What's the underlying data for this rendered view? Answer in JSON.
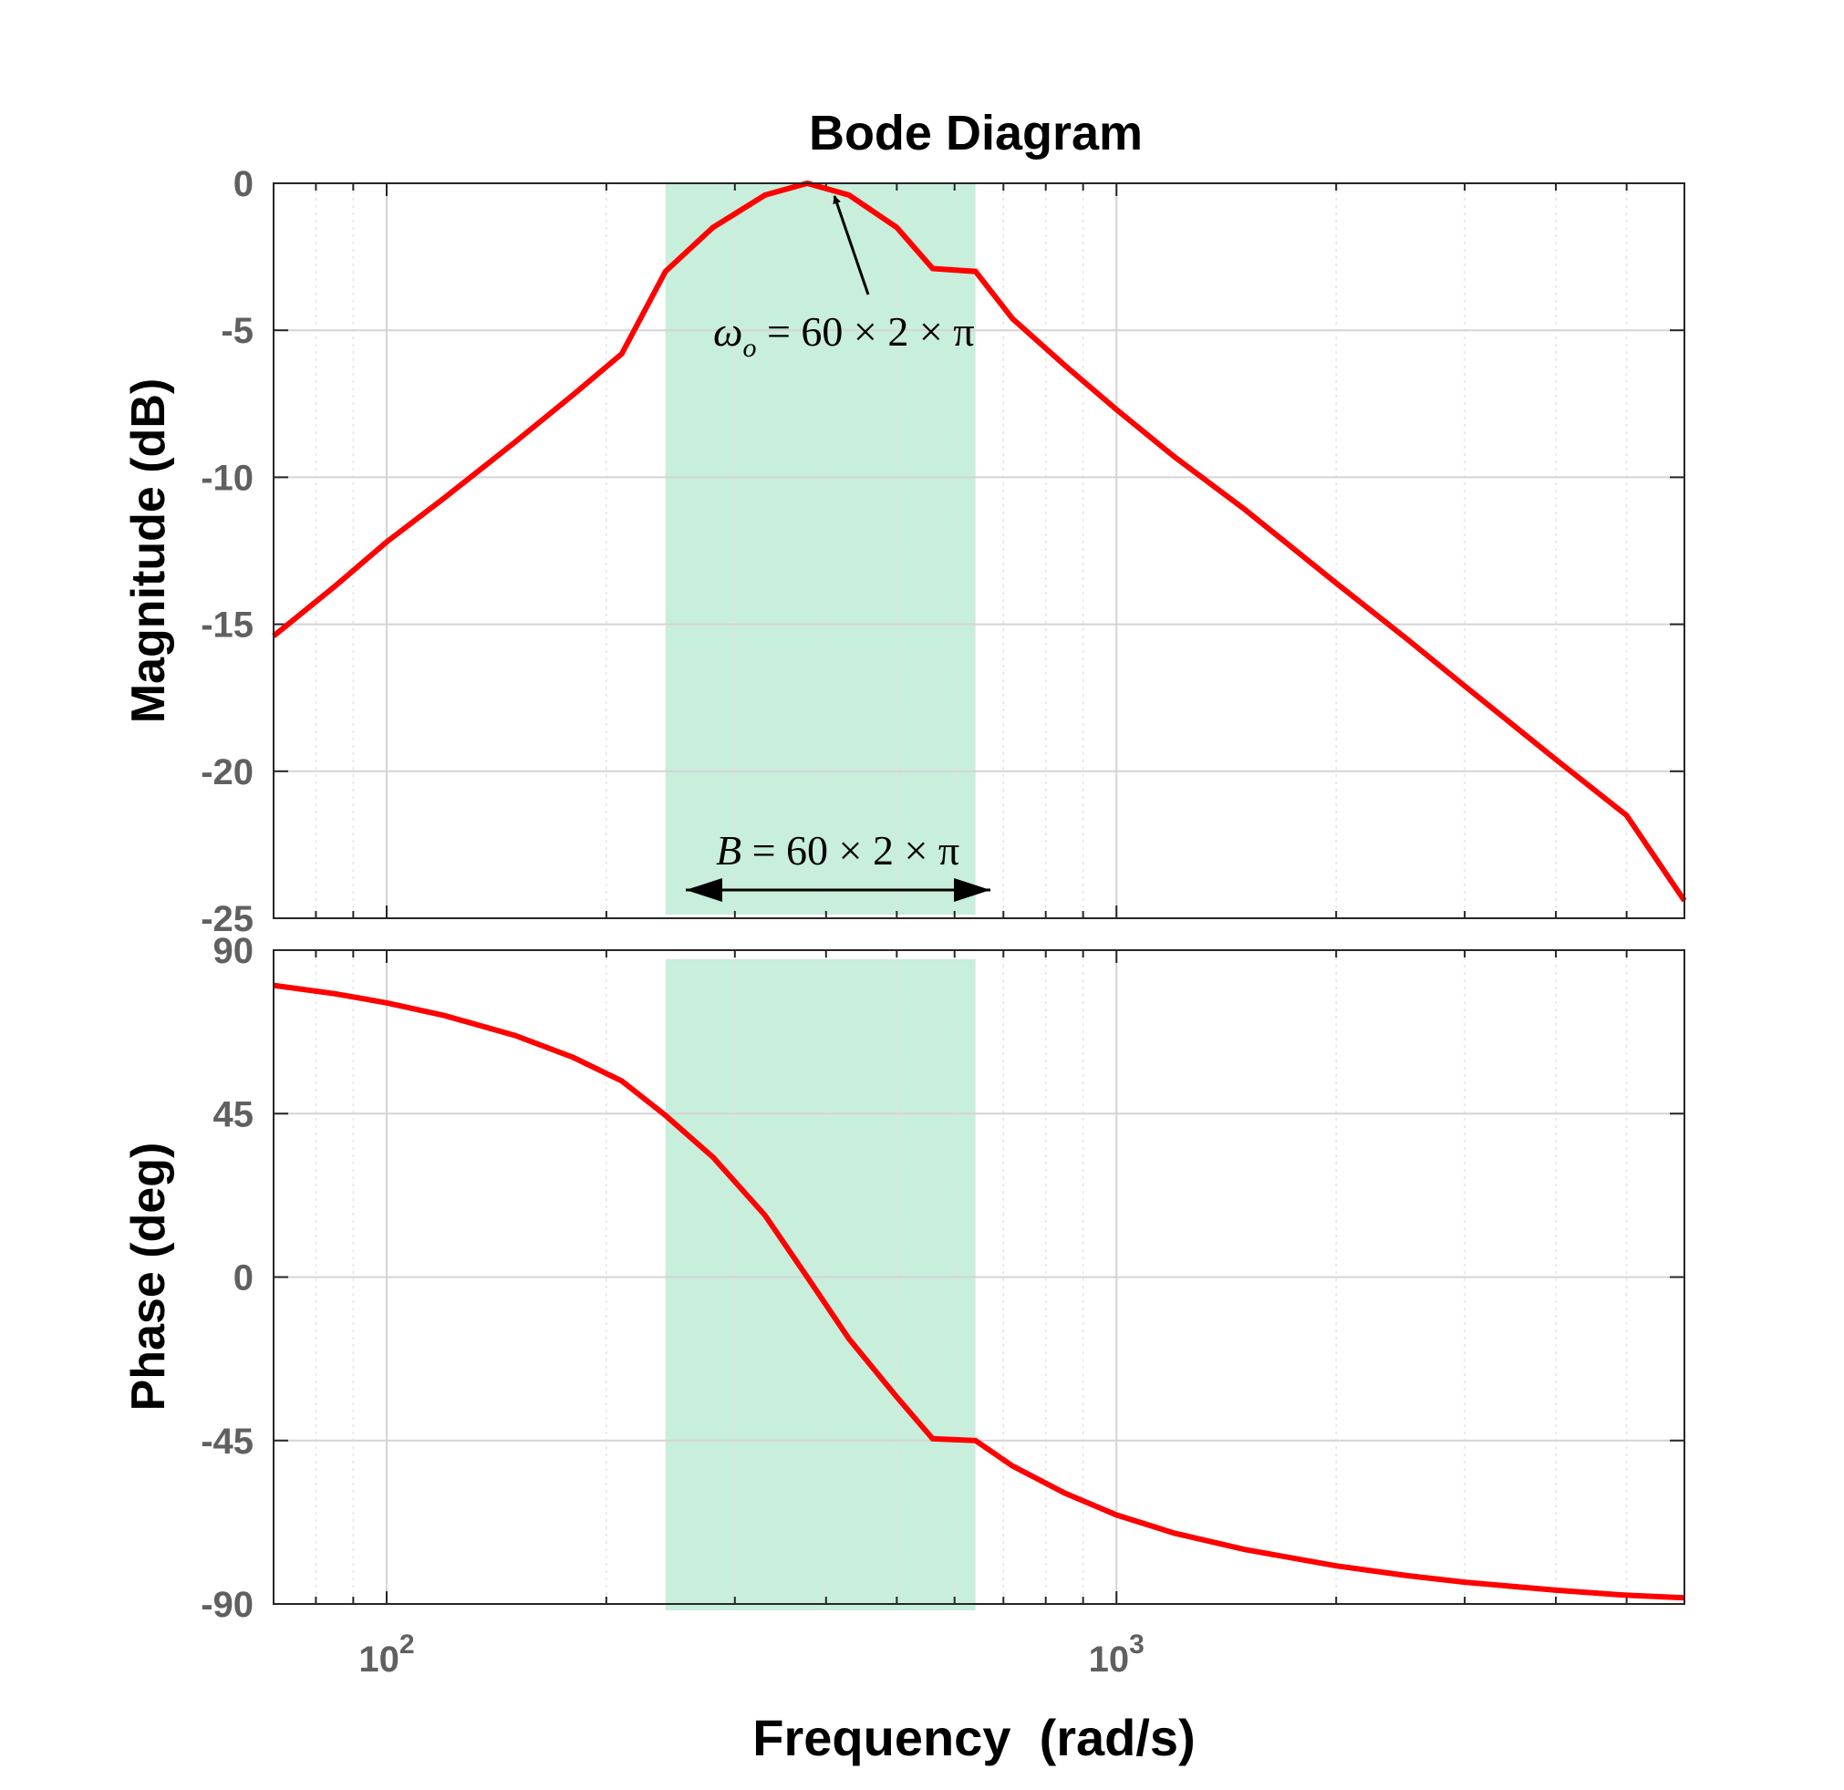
{
  "chart_data": {
    "type": "line",
    "title": "Bode Diagram",
    "xlabel": "Frequency  (rad/s)",
    "x_scale": "log",
    "xlim": [
      70,
      6000
    ],
    "x_ticks": [
      {
        "value": 100,
        "base": "10",
        "exp": "2"
      },
      {
        "value": 1000,
        "base": "10",
        "exp": "3"
      }
    ],
    "grid": true,
    "line_color": "#ff0000",
    "band_color": "#c8eedc",
    "band_x": [
      241,
      641
    ],
    "panels": [
      {
        "name": "magnitude",
        "ylabel": "Magnitude (dB)",
        "ylim": [
          -25,
          0
        ],
        "y_ticks": [
          "0",
          "-5",
          "-10",
          "-15",
          "-20",
          "-25"
        ],
        "y_tick_values": [
          0,
          -5,
          -10,
          -15,
          -20,
          -25
        ],
        "series": [
          {
            "x": [
              70,
              85,
              100,
              120,
              150,
              180,
              210,
              241,
              280,
              330,
              377,
              430,
              500,
              560,
              641,
              720,
              850,
              1000,
              1200,
              1500,
              2000,
              2500,
              3000,
              4000,
              5000,
              6000
            ],
            "y": [
              -15.4,
              -13.7,
              -12.2,
              -10.7,
              -8.8,
              -7.2,
              -5.8,
              -3.0,
              -1.5,
              -0.4,
              0.0,
              -0.4,
              -1.5,
              -2.9,
              -3.0,
              -4.6,
              -6.2,
              -7.7,
              -9.3,
              -11.1,
              -13.6,
              -15.5,
              -17.1,
              -19.6,
              -21.5,
              -24.4
            ]
          }
        ]
      },
      {
        "name": "phase",
        "ylabel": "Phase (deg)",
        "ylim": [
          -90,
          90
        ],
        "y_ticks": [
          "90",
          "45",
          "0",
          "-45",
          "-90"
        ],
        "y_tick_values": [
          90,
          45,
          0,
          -45,
          -90
        ],
        "series": [
          {
            "x": [
              70,
              85,
              100,
              120,
              150,
              180,
              210,
              241,
              280,
              330,
              377,
              430,
              500,
              560,
              641,
              720,
              850,
              1000,
              1200,
              1500,
              2000,
              2500,
              3000,
              4000,
              5000,
              6000
            ],
            "y": [
              80.3,
              78.0,
              75.5,
              72.0,
              66.5,
              60.5,
              54.0,
              44.5,
              33.0,
              17.0,
              0.0,
              -17.0,
              -33.0,
              -44.5,
              -45.0,
              -52.0,
              -59.5,
              -65.5,
              -70.5,
              -75.0,
              -79.5,
              -82.2,
              -84.0,
              -86.2,
              -87.6,
              -88.3
            ]
          }
        ]
      }
    ],
    "annotations": {
      "omega_label": {
        "symbol": "ω",
        "subscript": "o",
        "text": " = 60 × 2 × π"
      },
      "bandwidth_label": {
        "symbol": "B",
        "text": " = 60 × 2 × π"
      }
    }
  }
}
